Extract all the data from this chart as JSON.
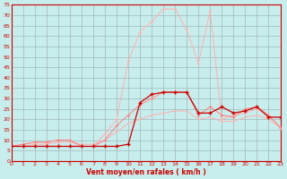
{
  "x": [
    0,
    1,
    2,
    3,
    4,
    5,
    6,
    7,
    8,
    9,
    10,
    11,
    12,
    13,
    14,
    15,
    16,
    17,
    18,
    19,
    20,
    21,
    22,
    23
  ],
  "line_dark": [
    7,
    7,
    7,
    7,
    7,
    7,
    7,
    7,
    7,
    7,
    8,
    28,
    32,
    33,
    33,
    33,
    23,
    23,
    26,
    23,
    24,
    26,
    21,
    21
  ],
  "line_light1": [
    7,
    8,
    9,
    9,
    10,
    10,
    7,
    7,
    10,
    17,
    22,
    27,
    30,
    33,
    33,
    33,
    22,
    26,
    22,
    21,
    25,
    26,
    22,
    16
  ],
  "line_light2": [
    7,
    8,
    9,
    9,
    10,
    10,
    7,
    7,
    13,
    20,
    48,
    62,
    67,
    73,
    73,
    63,
    47,
    72,
    20,
    22,
    23,
    25,
    22,
    16
  ],
  "line_avg": [
    7,
    7,
    8,
    8,
    9,
    9,
    8,
    8,
    10,
    14,
    18,
    20,
    22,
    23,
    24,
    24,
    20,
    21,
    19,
    19,
    21,
    22,
    20,
    16
  ],
  "background_color": "#c8eded",
  "grid_color": "#a0b8b8",
  "line_dark_color": "#cc0000",
  "line_light1_color": "#ff8080",
  "line_light2_color": "#ffb0b0",
  "line_avg_color": "#ffb0b0",
  "xlabel": "Vent moyen/en rafales ( km/h )",
  "ylim": [
    0,
    75
  ],
  "xlim": [
    0,
    23
  ],
  "yticks": [
    0,
    5,
    10,
    15,
    20,
    25,
    30,
    35,
    40,
    45,
    50,
    55,
    60,
    65,
    70,
    75
  ],
  "xticks": [
    0,
    1,
    2,
    3,
    4,
    5,
    6,
    7,
    8,
    9,
    10,
    11,
    12,
    13,
    14,
    15,
    16,
    17,
    18,
    19,
    20,
    21,
    22,
    23
  ]
}
